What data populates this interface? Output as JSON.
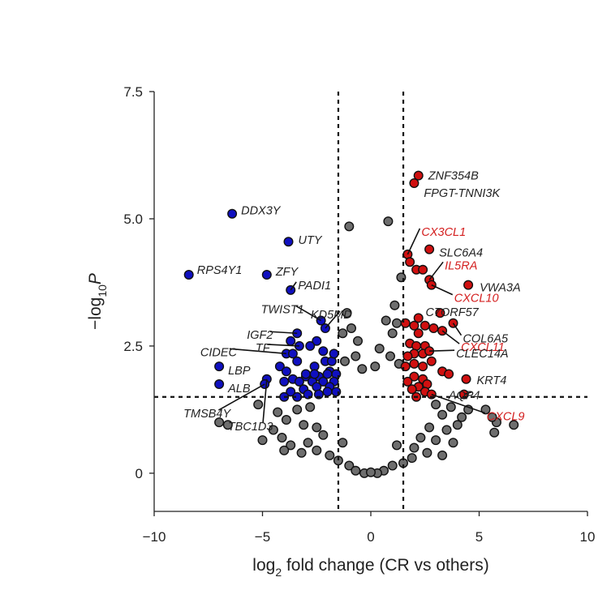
{
  "chart_data": {
    "type": "scatter",
    "title": "",
    "xlabel": {
      "pre": "log",
      "sub": "2",
      "post": " fold change (CR vs others)"
    },
    "ylabel": {
      "pre": "−log",
      "sub": "10",
      "post": "P"
    },
    "xlim": [
      -10,
      10
    ],
    "ylim": [
      -0.75,
      7.5
    ],
    "xticks": [
      {
        "value": -10,
        "label": "−10"
      },
      {
        "value": -5,
        "label": "−5"
      },
      {
        "value": 0,
        "label": "0"
      },
      {
        "value": 5,
        "label": "5"
      },
      {
        "value": 10,
        "label": "10"
      }
    ],
    "yticks": [
      {
        "value": 0,
        "label": "0"
      },
      {
        "value": 2.5,
        "label": "2.5"
      },
      {
        "value": 5,
        "label": "5.0"
      },
      {
        "value": 7.5,
        "label": "7.5"
      }
    ],
    "thresholds": {
      "fold_change": [
        -1.5,
        1.5
      ],
      "neg_log10_p": 1.5
    },
    "colors": {
      "down": "#1010c0",
      "up": "#d01010",
      "ns": "#6e6e6e",
      "label_up": "#d42020",
      "label_other": "#222222"
    },
    "grid": false,
    "legend": "none",
    "series": [
      {
        "category": "down",
        "points": [
          {
            "x": -6.4,
            "y": 5.1
          },
          {
            "x": -3.8,
            "y": 4.55
          },
          {
            "x": -4.8,
            "y": 3.9
          },
          {
            "x": -8.4,
            "y": 3.9
          },
          {
            "x": -3.7,
            "y": 3.6
          },
          {
            "x": -2.3,
            "y": 3.0
          },
          {
            "x": -3.4,
            "y": 2.75
          },
          {
            "x": -2.1,
            "y": 2.85
          },
          {
            "x": -2.5,
            "y": 2.6
          },
          {
            "x": -3.7,
            "y": 2.6
          },
          {
            "x": -3.3,
            "y": 2.5
          },
          {
            "x": -2.8,
            "y": 2.5
          },
          {
            "x": -3.9,
            "y": 2.35
          },
          {
            "x": -3.6,
            "y": 2.35
          },
          {
            "x": -2.2,
            "y": 2.4
          },
          {
            "x": -3.4,
            "y": 2.2
          },
          {
            "x": -2.1,
            "y": 2.2
          },
          {
            "x": -4.2,
            "y": 2.1
          },
          {
            "x": -2.6,
            "y": 2.1
          },
          {
            "x": -1.8,
            "y": 2.2
          },
          {
            "x": -1.7,
            "y": 2.35
          },
          {
            "x": -3.9,
            "y": 2.0
          },
          {
            "x": -1.9,
            "y": 2.0
          },
          {
            "x": -3.0,
            "y": 1.9
          },
          {
            "x": -2.4,
            "y": 1.9
          },
          {
            "x": -3.6,
            "y": 1.85
          },
          {
            "x": -1.6,
            "y": 1.95
          },
          {
            "x": -4.0,
            "y": 1.8
          },
          {
            "x": -3.3,
            "y": 1.8
          },
          {
            "x": -2.7,
            "y": 1.8
          },
          {
            "x": -2.2,
            "y": 1.8
          },
          {
            "x": -1.7,
            "y": 1.8
          },
          {
            "x": -3.1,
            "y": 1.65
          },
          {
            "x": -2.5,
            "y": 1.7
          },
          {
            "x": -1.9,
            "y": 1.7
          },
          {
            "x": -3.7,
            "y": 1.6
          },
          {
            "x": -2.9,
            "y": 1.55
          },
          {
            "x": -2.0,
            "y": 1.6
          },
          {
            "x": -3.4,
            "y": 1.5
          },
          {
            "x": -2.4,
            "y": 1.55
          },
          {
            "x": -1.6,
            "y": 1.6
          },
          {
            "x": -4.0,
            "y": 1.5
          },
          {
            "x": -4.8,
            "y": 1.85
          },
          {
            "x": -4.9,
            "y": 1.75
          },
          {
            "x": -7.0,
            "y": 2.1
          },
          {
            "x": -7.0,
            "y": 1.75
          },
          {
            "x": -3.0,
            "y": 1.95
          },
          {
            "x": -2.6,
            "y": 1.95
          },
          {
            "x": -2.0,
            "y": 1.95
          }
        ]
      },
      {
        "category": "up",
        "points": [
          {
            "x": 2.2,
            "y": 5.85
          },
          {
            "x": 2.0,
            "y": 5.7
          },
          {
            "x": 2.7,
            "y": 4.4
          },
          {
            "x": 1.7,
            "y": 4.3
          },
          {
            "x": 1.8,
            "y": 4.15
          },
          {
            "x": 2.1,
            "y": 4.0
          },
          {
            "x": 2.4,
            "y": 4.0
          },
          {
            "x": 2.7,
            "y": 3.8
          },
          {
            "x": 2.8,
            "y": 3.7
          },
          {
            "x": 4.5,
            "y": 3.7
          },
          {
            "x": 3.2,
            "y": 3.15
          },
          {
            "x": 2.2,
            "y": 3.05
          },
          {
            "x": 1.6,
            "y": 2.95
          },
          {
            "x": 2.0,
            "y": 2.9
          },
          {
            "x": 2.5,
            "y": 2.9
          },
          {
            "x": 2.9,
            "y": 2.85
          },
          {
            "x": 3.3,
            "y": 2.8
          },
          {
            "x": 3.8,
            "y": 2.95
          },
          {
            "x": 2.2,
            "y": 2.75
          },
          {
            "x": 1.8,
            "y": 2.55
          },
          {
            "x": 2.1,
            "y": 2.5
          },
          {
            "x": 2.5,
            "y": 2.5
          },
          {
            "x": 2.0,
            "y": 2.35
          },
          {
            "x": 2.4,
            "y": 2.35
          },
          {
            "x": 2.7,
            "y": 2.4
          },
          {
            "x": 1.7,
            "y": 2.3
          },
          {
            "x": 2.0,
            "y": 2.15
          },
          {
            "x": 2.4,
            "y": 2.1
          },
          {
            "x": 1.6,
            "y": 2.1
          },
          {
            "x": 2.8,
            "y": 2.2
          },
          {
            "x": 3.3,
            "y": 2.0
          },
          {
            "x": 3.6,
            "y": 1.95
          },
          {
            "x": 4.4,
            "y": 1.85
          },
          {
            "x": 2.0,
            "y": 1.9
          },
          {
            "x": 2.4,
            "y": 1.85
          },
          {
            "x": 1.7,
            "y": 1.8
          },
          {
            "x": 2.6,
            "y": 1.75
          },
          {
            "x": 2.2,
            "y": 1.7
          },
          {
            "x": 1.9,
            "y": 1.65
          },
          {
            "x": 2.5,
            "y": 1.6
          },
          {
            "x": 4.3,
            "y": 1.55
          },
          {
            "x": 2.8,
            "y": 1.55
          },
          {
            "x": 2.1,
            "y": 1.5
          }
        ]
      },
      {
        "category": "ns",
        "points": [
          {
            "x": 0.8,
            "y": 4.95
          },
          {
            "x": -1.0,
            "y": 4.85
          },
          {
            "x": 1.4,
            "y": 3.85
          },
          {
            "x": 1.1,
            "y": 3.3
          },
          {
            "x": -1.1,
            "y": 3.15
          },
          {
            "x": 0.7,
            "y": 3.0
          },
          {
            "x": 1.2,
            "y": 2.95
          },
          {
            "x": -0.9,
            "y": 2.85
          },
          {
            "x": -0.6,
            "y": 2.6
          },
          {
            "x": 1.0,
            "y": 2.75
          },
          {
            "x": -1.3,
            "y": 2.75
          },
          {
            "x": -0.7,
            "y": 2.3
          },
          {
            "x": 0.4,
            "y": 2.45
          },
          {
            "x": 0.9,
            "y": 2.3
          },
          {
            "x": -1.2,
            "y": 2.2
          },
          {
            "x": 0.2,
            "y": 2.1
          },
          {
            "x": -0.4,
            "y": 2.05
          },
          {
            "x": 1.3,
            "y": 2.15
          },
          {
            "x": -5.2,
            "y": 1.35
          },
          {
            "x": -4.3,
            "y": 1.2
          },
          {
            "x": -3.4,
            "y": 1.25
          },
          {
            "x": -2.8,
            "y": 1.3
          },
          {
            "x": 3.0,
            "y": 1.35
          },
          {
            "x": 3.7,
            "y": 1.3
          },
          {
            "x": 4.5,
            "y": 1.25
          },
          {
            "x": 5.3,
            "y": 1.25
          },
          {
            "x": 4.2,
            "y": 1.1
          },
          {
            "x": 3.3,
            "y": 1.15
          },
          {
            "x": 5.8,
            "y": 1.0
          },
          {
            "x": 4.0,
            "y": 0.95
          },
          {
            "x": -7.0,
            "y": 1.0
          },
          {
            "x": -6.6,
            "y": 0.95
          },
          {
            "x": -3.9,
            "y": 1.05
          },
          {
            "x": -3.1,
            "y": 0.95
          },
          {
            "x": -2.5,
            "y": 0.9
          },
          {
            "x": -4.5,
            "y": 0.85
          },
          {
            "x": 2.7,
            "y": 0.9
          },
          {
            "x": 3.5,
            "y": 0.85
          },
          {
            "x": 5.6,
            "y": 1.1
          },
          {
            "x": 6.6,
            "y": 0.95
          },
          {
            "x": 5.7,
            "y": 0.8
          },
          {
            "x": -5.0,
            "y": 0.65
          },
          {
            "x": -4.1,
            "y": 0.7
          },
          {
            "x": -3.7,
            "y": 0.55
          },
          {
            "x": -2.9,
            "y": 0.6
          },
          {
            "x": -2.2,
            "y": 0.75
          },
          {
            "x": 2.3,
            "y": 0.7
          },
          {
            "x": 3.0,
            "y": 0.65
          },
          {
            "x": 3.8,
            "y": 0.6
          },
          {
            "x": 2.0,
            "y": 0.5
          },
          {
            "x": -4.0,
            "y": 0.45
          },
          {
            "x": -3.2,
            "y": 0.4
          },
          {
            "x": -2.5,
            "y": 0.45
          },
          {
            "x": 2.6,
            "y": 0.4
          },
          {
            "x": 3.3,
            "y": 0.35
          },
          {
            "x": -1.9,
            "y": 0.35
          },
          {
            "x": 1.9,
            "y": 0.3
          },
          {
            "x": -1.5,
            "y": 0.25
          },
          {
            "x": 1.5,
            "y": 0.2
          },
          {
            "x": -1.3,
            "y": 0.6
          },
          {
            "x": 1.2,
            "y": 0.55
          },
          {
            "x": -1.0,
            "y": 0.15
          },
          {
            "x": 1.0,
            "y": 0.15
          },
          {
            "x": -0.7,
            "y": 0.05
          },
          {
            "x": 0.6,
            "y": 0.05
          },
          {
            "x": -0.3,
            "y": 0.0
          },
          {
            "x": 0.3,
            "y": 0.0
          },
          {
            "x": 0.0,
            "y": 0.02
          }
        ]
      }
    ],
    "annotations": [
      {
        "text": "ZNF354B",
        "category": "up",
        "x": 2.2,
        "y": 5.85
      },
      {
        "text": "FPGT-TNNI3K",
        "category": "up",
        "x": 2.0,
        "y": 5.7
      },
      {
        "text": "CX3CL1",
        "category": "up",
        "x": 1.7,
        "y": 4.3
      },
      {
        "text": "SLC6A4",
        "category": "up",
        "x": 2.7,
        "y": 4.4
      },
      {
        "text": "IL5RA",
        "category": "up",
        "x": 2.7,
        "y": 3.8
      },
      {
        "text": "VWA3A",
        "category": "up",
        "x": 4.5,
        "y": 3.7
      },
      {
        "text": "CXCL10",
        "category": "up",
        "x": 2.8,
        "y": 3.7
      },
      {
        "text": "C7ORF57",
        "category": "up",
        "x": 3.2,
        "y": 3.15
      },
      {
        "text": "CXCL11",
        "category": "up",
        "x": 3.3,
        "y": 2.8
      },
      {
        "text": "COL6A5",
        "category": "up",
        "x": 3.8,
        "y": 2.95
      },
      {
        "text": "CLEC14A",
        "category": "up",
        "x": 2.7,
        "y": 2.4
      },
      {
        "text": "KRT4",
        "category": "up",
        "x": 4.4,
        "y": 1.85
      },
      {
        "text": "AQP4",
        "category": "up",
        "x": 4.3,
        "y": 1.55
      },
      {
        "text": "CXCL9",
        "category": "up",
        "x": 2.8,
        "y": 1.55
      },
      {
        "text": "DDX3Y",
        "category": "down",
        "x": -6.4,
        "y": 5.1
      },
      {
        "text": "UTY",
        "category": "down",
        "x": -3.8,
        "y": 4.55
      },
      {
        "text": "RPS4Y1",
        "category": "down",
        "x": -8.4,
        "y": 3.9
      },
      {
        "text": "ZFY",
        "category": "down",
        "x": -4.8,
        "y": 3.9
      },
      {
        "text": "PADI1",
        "category": "down",
        "x": -3.7,
        "y": 3.6
      },
      {
        "text": "TWIST1",
        "category": "down",
        "x": -2.3,
        "y": 3.0
      },
      {
        "text": "KD5MD",
        "category": "down",
        "x": -2.1,
        "y": 2.85
      },
      {
        "text": "IGF2",
        "category": "down",
        "x": -3.4,
        "y": 2.75
      },
      {
        "text": "TF",
        "category": "down",
        "x": -3.3,
        "y": 2.5
      },
      {
        "text": "CIDEC",
        "category": "down",
        "x": -3.9,
        "y": 2.35
      },
      {
        "text": "LBP",
        "category": "down",
        "x": -7.0,
        "y": 2.1
      },
      {
        "text": "ALB",
        "category": "down",
        "x": -7.0,
        "y": 1.75
      },
      {
        "text": "TMSB4Y",
        "category": "down",
        "x": -4.9,
        "y": 1.75
      },
      {
        "text": "TBC1D3",
        "category": "down",
        "x": -4.8,
        "y": 1.85
      }
    ]
  }
}
